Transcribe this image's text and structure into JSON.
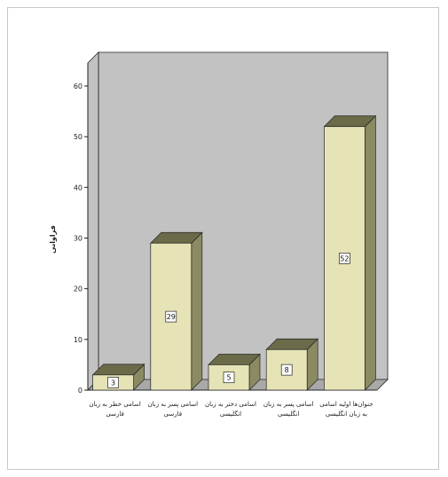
{
  "chart_data": {
    "type": "bar",
    "ylabel": "فراوانی",
    "ylim": [
      0,
      60
    ],
    "yticks": [
      0,
      10,
      20,
      30,
      40,
      50,
      60
    ],
    "grid": false,
    "categories": [
      [
        "اسامی خطر به زبان",
        "فارسی"
      ],
      [
        "اسامی پسر به زبان",
        "فارسی"
      ],
      [
        "اسامی دختر به زبان",
        "انگلیسی"
      ],
      [
        "اسامی پسر به زبان",
        "انگلیسی"
      ],
      [
        "جنوان‌ها اولیه اسامی",
        "به زبان انگلیسی"
      ]
    ],
    "values": [
      3,
      29,
      5,
      8,
      52
    ],
    "colors": {
      "wall": "#c2c2c2",
      "floor": "#a9a9a9",
      "bar_front": "#e6e3b6",
      "bar_top": "#6b6b4a",
      "bar_side": "#8b8a62",
      "outline": "#222222"
    }
  }
}
